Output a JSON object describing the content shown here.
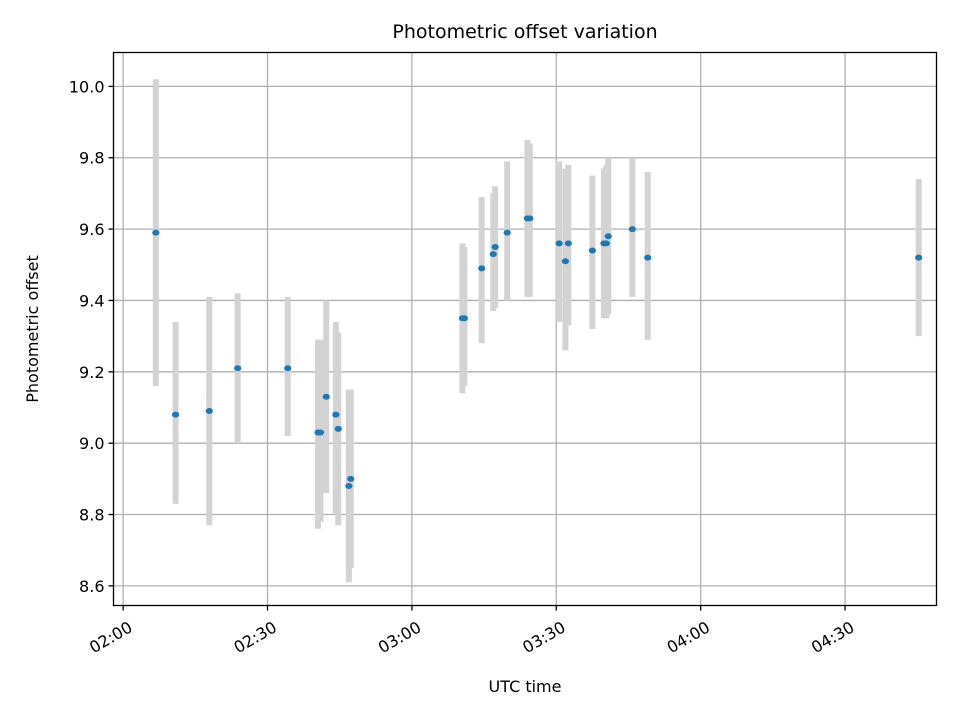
{
  "chart_data": {
    "type": "scatter",
    "title": "Photometric offset variation",
    "xlabel": "UTC time",
    "ylabel": "Photometric offset",
    "x_unit": "UTC time (HH:MM)",
    "xlim": [
      "01:58",
      "04:49"
    ],
    "ylim": [
      8.545,
      10.095
    ],
    "x_ticks": [
      "02:00",
      "02:30",
      "03:00",
      "03:30",
      "04:00",
      "04:30"
    ],
    "y_ticks": [
      "8.6",
      "8.8",
      "9.0",
      "9.2",
      "9.4",
      "9.6",
      "9.8",
      "10.0"
    ],
    "grid": true,
    "legend": "none",
    "colors": {
      "points": "#1f77b4",
      "error_bars": "#d3d3d3"
    },
    "points": [
      {
        "t": "02:06:48",
        "y": 9.59,
        "lo": 9.16,
        "hi": 10.02
      },
      {
        "t": "02:10:54",
        "y": 9.08,
        "lo": 8.83,
        "hi": 9.34
      },
      {
        "t": "02:17:54",
        "y": 9.09,
        "lo": 8.77,
        "hi": 9.41
      },
      {
        "t": "02:23:48",
        "y": 9.21,
        "lo": 9.0,
        "hi": 9.42
      },
      {
        "t": "02:34:12",
        "y": 9.21,
        "lo": 9.02,
        "hi": 9.41
      },
      {
        "t": "02:40:30",
        "y": 9.03,
        "lo": 8.76,
        "hi": 9.29
      },
      {
        "t": "02:41:00",
        "y": 9.03,
        "lo": 8.78,
        "hi": 9.29
      },
      {
        "t": "02:42:12",
        "y": 9.13,
        "lo": 8.86,
        "hi": 9.4
      },
      {
        "t": "02:44:12",
        "y": 9.08,
        "lo": 8.8,
        "hi": 9.34
      },
      {
        "t": "02:44:42",
        "y": 9.04,
        "lo": 8.77,
        "hi": 9.31
      },
      {
        "t": "02:46:54",
        "y": 8.88,
        "lo": 8.61,
        "hi": 9.15
      },
      {
        "t": "02:47:18",
        "y": 8.9,
        "lo": 8.65,
        "hi": 9.15
      },
      {
        "t": "03:10:30",
        "y": 9.35,
        "lo": 9.14,
        "hi": 9.56
      },
      {
        "t": "03:10:54",
        "y": 9.35,
        "lo": 9.16,
        "hi": 9.55
      },
      {
        "t": "03:14:30",
        "y": 9.49,
        "lo": 9.28,
        "hi": 9.69
      },
      {
        "t": "03:16:54",
        "y": 9.53,
        "lo": 9.37,
        "hi": 9.7
      },
      {
        "t": "03:17:18",
        "y": 9.55,
        "lo": 9.38,
        "hi": 9.72
      },
      {
        "t": "03:19:48",
        "y": 9.59,
        "lo": 9.4,
        "hi": 9.79
      },
      {
        "t": "03:24:00",
        "y": 9.63,
        "lo": 9.41,
        "hi": 9.85
      },
      {
        "t": "03:24:30",
        "y": 9.63,
        "lo": 9.41,
        "hi": 9.84
      },
      {
        "t": "03:30:36",
        "y": 9.56,
        "lo": 9.34,
        "hi": 9.79
      },
      {
        "t": "03:31:54",
        "y": 9.51,
        "lo": 9.26,
        "hi": 9.77
      },
      {
        "t": "03:32:30",
        "y": 9.56,
        "lo": 9.33,
        "hi": 9.78
      },
      {
        "t": "03:37:30",
        "y": 9.54,
        "lo": 9.32,
        "hi": 9.75
      },
      {
        "t": "03:39:54",
        "y": 9.56,
        "lo": 9.35,
        "hi": 9.77
      },
      {
        "t": "03:40:24",
        "y": 9.56,
        "lo": 9.35,
        "hi": 9.78
      },
      {
        "t": "03:40:48",
        "y": 9.58,
        "lo": 9.36,
        "hi": 9.8
      },
      {
        "t": "03:45:48",
        "y": 9.6,
        "lo": 9.41,
        "hi": 9.8
      },
      {
        "t": "03:49:00",
        "y": 9.52,
        "lo": 9.29,
        "hi": 9.76
      },
      {
        "t": "04:45:18",
        "y": 9.52,
        "lo": 9.3,
        "hi": 9.74
      }
    ]
  }
}
